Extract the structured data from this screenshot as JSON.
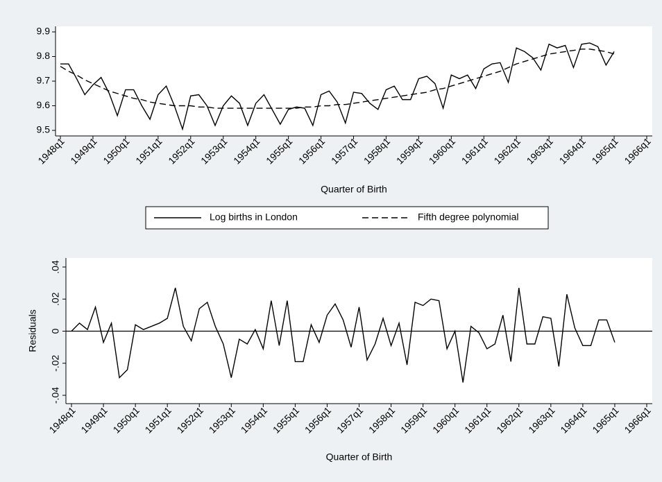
{
  "chart_data": [
    {
      "type": "line",
      "x_label": "Quarter of Birth",
      "x": [
        "1948q1",
        "1948q2",
        "1948q3",
        "1948q4",
        "1949q1",
        "1949q2",
        "1949q3",
        "1949q4",
        "1950q1",
        "1950q2",
        "1950q3",
        "1950q4",
        "1951q1",
        "1951q2",
        "1951q3",
        "1951q4",
        "1952q1",
        "1952q2",
        "1952q3",
        "1952q4",
        "1953q1",
        "1953q2",
        "1953q3",
        "1953q4",
        "1954q1",
        "1954q2",
        "1954q3",
        "1954q4",
        "1955q1",
        "1955q2",
        "1955q3",
        "1955q4",
        "1956q1",
        "1956q2",
        "1956q3",
        "1956q4",
        "1957q1",
        "1957q2",
        "1957q3",
        "1957q4",
        "1958q1",
        "1958q2",
        "1958q3",
        "1958q4",
        "1959q1",
        "1959q2",
        "1959q3",
        "1959q4",
        "1960q1",
        "1960q2",
        "1960q3",
        "1960q4",
        "1961q1",
        "1961q2",
        "1961q3",
        "1961q4",
        "1962q1",
        "1962q2",
        "1962q3",
        "1962q4",
        "1963q1",
        "1963q2",
        "1963q3",
        "1963q4",
        "1964q1",
        "1964q2",
        "1964q3",
        "1964q4",
        "1965q1"
      ],
      "xlim": [
        "1948q1",
        "1966q1"
      ],
      "xticks": [
        "1948q1",
        "1949q1",
        "1950q1",
        "1951q1",
        "1952q1",
        "1953q1",
        "1954q1",
        "1955q1",
        "1956q1",
        "1957q1",
        "1958q1",
        "1959q1",
        "1960q1",
        "1961q1",
        "1962q1",
        "1963q1",
        "1964q1",
        "1965q1",
        "1966q1"
      ],
      "ylim": [
        9.5,
        9.9
      ],
      "yticks": [
        9.5,
        9.6,
        9.7,
        9.8,
        9.9
      ],
      "legend": "bottom",
      "series": [
        {
          "name": "Log births in London",
          "color": "#000000",
          "line_style": "solid",
          "values": [
            9.77,
            9.77,
            9.71,
            9.645,
            9.685,
            9.715,
            9.65,
            9.56,
            9.665,
            9.665,
            9.6,
            9.545,
            9.645,
            9.68,
            9.6,
            9.505,
            9.64,
            9.645,
            9.6,
            9.52,
            9.6,
            9.64,
            9.61,
            9.52,
            9.61,
            9.645,
            9.585,
            9.525,
            9.585,
            9.595,
            9.59,
            9.52,
            9.645,
            9.66,
            9.615,
            9.53,
            9.655,
            9.65,
            9.61,
            9.585,
            9.665,
            9.68,
            9.625,
            9.625,
            9.71,
            9.72,
            9.69,
            9.59,
            9.725,
            9.71,
            9.725,
            9.67,
            9.75,
            9.77,
            9.775,
            9.695,
            9.835,
            9.82,
            9.795,
            9.745,
            9.85,
            9.835,
            9.845,
            9.755,
            9.85,
            9.855,
            9.84,
            9.765,
            9.82
          ]
        },
        {
          "name": "Fifth degree polynomial",
          "color": "#000000",
          "line_style": "dashed",
          "values": [
            9.76,
            9.74,
            9.725,
            9.705,
            9.69,
            9.675,
            9.66,
            9.65,
            9.64,
            9.63,
            9.625,
            9.615,
            9.61,
            9.605,
            9.6,
            9.6,
            9.6,
            9.595,
            9.595,
            9.59,
            9.59,
            9.59,
            9.59,
            9.59,
            9.59,
            9.59,
            9.59,
            9.59,
            9.59,
            9.59,
            9.595,
            9.595,
            9.6,
            9.6,
            9.605,
            9.605,
            9.61,
            9.615,
            9.62,
            9.625,
            9.63,
            9.635,
            9.64,
            9.645,
            9.65,
            9.655,
            9.665,
            9.67,
            9.68,
            9.69,
            9.7,
            9.71,
            9.72,
            9.73,
            9.74,
            9.755,
            9.77,
            9.78,
            9.79,
            9.8,
            9.81,
            9.815,
            9.82,
            9.825,
            9.83,
            9.83,
            9.825,
            9.82,
            9.81
          ]
        }
      ]
    },
    {
      "type": "line",
      "x_label": "Quarter of Birth",
      "y_label": "Residuals",
      "x": [
        "1948q1",
        "1948q2",
        "1948q3",
        "1948q4",
        "1949q1",
        "1949q2",
        "1949q3",
        "1949q4",
        "1950q1",
        "1950q2",
        "1950q3",
        "1950q4",
        "1951q1",
        "1951q2",
        "1951q3",
        "1951q4",
        "1952q1",
        "1952q2",
        "1952q3",
        "1952q4",
        "1953q1",
        "1953q2",
        "1953q3",
        "1953q4",
        "1954q1",
        "1954q2",
        "1954q3",
        "1954q4",
        "1955q1",
        "1955q2",
        "1955q3",
        "1955q4",
        "1956q1",
        "1956q2",
        "1956q3",
        "1956q4",
        "1957q1",
        "1957q2",
        "1957q3",
        "1957q4",
        "1958q1",
        "1958q2",
        "1958q3",
        "1958q4",
        "1959q1",
        "1959q2",
        "1959q3",
        "1959q4",
        "1960q1",
        "1960q2",
        "1960q3",
        "1960q4",
        "1961q1",
        "1961q2",
        "1961q3",
        "1961q4",
        "1962q1",
        "1962q2",
        "1962q3",
        "1962q4",
        "1963q1",
        "1963q2",
        "1963q3",
        "1963q4",
        "1964q1",
        "1964q2",
        "1964q3",
        "1964q4",
        "1965q1"
      ],
      "xlim": [
        "1948q1",
        "1966q1"
      ],
      "xticks": [
        "1948q1",
        "1949q1",
        "1950q1",
        "1951q1",
        "1952q1",
        "1953q1",
        "1954q1",
        "1955q1",
        "1956q1",
        "1957q1",
        "1958q1",
        "1959q1",
        "1960q1",
        "1961q1",
        "1962q1",
        "1963q1",
        "1964q1",
        "1965q1",
        "1966q1"
      ],
      "ylim": [
        -0.04,
        0.04
      ],
      "yticks": [
        {
          "value": -0.04,
          "label": "-.04"
        },
        {
          "value": -0.02,
          "label": "-.02"
        },
        0,
        {
          "value": 0.02,
          "label": ".02"
        },
        {
          "value": 0.04,
          "label": ".04"
        }
      ],
      "yline": 0,
      "color": "#000000",
      "values": [
        0.0,
        0.005,
        0.001,
        0.015,
        -0.007,
        0.005,
        -0.029,
        -0.024,
        0.004,
        0.001,
        0.003,
        0.005,
        0.008,
        0.027,
        0.003,
        -0.006,
        0.014,
        0.018,
        0.003,
        -0.008,
        -0.029,
        -0.005,
        -0.008,
        0.001,
        -0.011,
        0.019,
        -0.009,
        0.019,
        -0.019,
        -0.019,
        0.004,
        -0.007,
        0.01,
        0.017,
        0.007,
        -0.01,
        0.015,
        -0.018,
        -0.008,
        0.008,
        -0.009,
        0.005,
        -0.021,
        0.018,
        0.016,
        0.02,
        0.019,
        -0.011,
        0.0,
        -0.032,
        0.003,
        -0.001,
        -0.011,
        -0.008,
        0.01,
        -0.019,
        0.027,
        -0.008,
        -0.008,
        0.009,
        0.008,
        -0.022,
        0.023,
        0.002,
        -0.009,
        -0.009,
        0.007,
        0.007,
        -0.007
      ]
    }
  ]
}
